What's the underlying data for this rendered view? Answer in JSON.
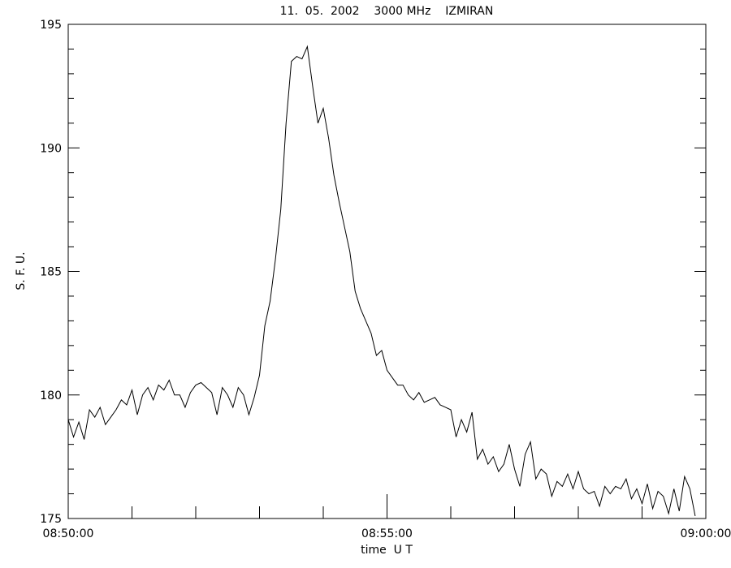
{
  "chart_data": {
    "type": "line",
    "title": "11.  05.  2002    3000 MHz    IZMIRAN",
    "xlabel": "time  U T",
    "ylabel": "S. F. U.",
    "color": "#000000",
    "x": [
      "08:50:00",
      "08:50:05",
      "08:50:10",
      "08:50:15",
      "08:50:20",
      "08:50:25",
      "08:50:30",
      "08:50:35",
      "08:50:40",
      "08:50:45",
      "08:50:50",
      "08:50:55",
      "08:51:00",
      "08:51:05",
      "08:51:10",
      "08:51:15",
      "08:51:20",
      "08:51:25",
      "08:51:30",
      "08:51:35",
      "08:51:40",
      "08:51:45",
      "08:51:50",
      "08:51:55",
      "08:52:00",
      "08:52:05",
      "08:52:10",
      "08:52:15",
      "08:52:20",
      "08:52:25",
      "08:52:30",
      "08:52:35",
      "08:52:40",
      "08:52:45",
      "08:52:50",
      "08:52:55",
      "08:53:00",
      "08:53:05",
      "08:53:10",
      "08:53:15",
      "08:53:20",
      "08:53:25",
      "08:53:30",
      "08:53:35",
      "08:53:40",
      "08:53:45",
      "08:53:50",
      "08:53:55",
      "08:54:00",
      "08:54:05",
      "08:54:10",
      "08:54:15",
      "08:54:20",
      "08:54:25",
      "08:54:30",
      "08:54:35",
      "08:54:40",
      "08:54:45",
      "08:54:50",
      "08:54:55",
      "08:55:00",
      "08:55:05",
      "08:55:10",
      "08:55:15",
      "08:55:20",
      "08:55:25",
      "08:55:30",
      "08:55:35",
      "08:55:40",
      "08:55:45",
      "08:55:50",
      "08:55:55",
      "08:56:00",
      "08:56:05",
      "08:56:10",
      "08:56:15",
      "08:56:20",
      "08:56:25",
      "08:56:30",
      "08:56:35",
      "08:56:40",
      "08:56:45",
      "08:56:50",
      "08:56:55",
      "08:57:00",
      "08:57:05",
      "08:57:10",
      "08:57:15",
      "08:57:20",
      "08:57:25",
      "08:57:30",
      "08:57:35",
      "08:57:40",
      "08:57:45",
      "08:57:50",
      "08:57:55",
      "08:58:00",
      "08:58:05",
      "08:58:10",
      "08:58:15",
      "08:58:20",
      "08:58:25",
      "08:58:30",
      "08:58:35",
      "08:58:40",
      "08:58:45",
      "08:58:50",
      "08:58:55",
      "08:59:00",
      "08:59:05",
      "08:59:10",
      "08:59:15",
      "08:59:20",
      "08:59:25",
      "08:59:30",
      "08:59:35",
      "08:59:40",
      "08:59:45",
      "08:59:50"
    ],
    "values": [
      179.0,
      178.3,
      178.9,
      178.2,
      179.4,
      179.1,
      179.5,
      178.8,
      179.1,
      179.4,
      179.8,
      179.6,
      180.2,
      179.2,
      180.0,
      180.3,
      179.8,
      180.4,
      180.2,
      180.6,
      180.0,
      180.0,
      179.5,
      180.1,
      180.4,
      180.5,
      180.3,
      180.1,
      179.2,
      180.3,
      180.0,
      179.5,
      180.3,
      180.0,
      179.2,
      179.9,
      180.8,
      182.8,
      183.8,
      185.5,
      187.5,
      191.0,
      193.5,
      193.7,
      193.6,
      194.1,
      192.5,
      191.0,
      191.6,
      190.4,
      188.9,
      187.8,
      186.8,
      185.8,
      184.2,
      183.5,
      183.0,
      182.5,
      181.6,
      181.8,
      181.0,
      180.7,
      180.4,
      180.4,
      180.0,
      179.8,
      180.1,
      179.7,
      179.8,
      179.9,
      179.6,
      179.5,
      179.4,
      178.3,
      179.0,
      178.5,
      179.3,
      177.4,
      177.8,
      177.2,
      177.5,
      176.9,
      177.2,
      178.0,
      177.0,
      176.3,
      177.6,
      178.1,
      176.6,
      177.0,
      176.8,
      175.9,
      176.5,
      176.3,
      176.8,
      176.2,
      176.9,
      176.2,
      176.0,
      176.1,
      175.5,
      176.3,
      176.0,
      176.3,
      176.2,
      176.6,
      175.8,
      176.2,
      175.6,
      176.4,
      175.4,
      176.1,
      175.9,
      175.2,
      176.2,
      175.3,
      176.7,
      176.2,
      175.1
    ],
    "xlim": [
      "08:50:00",
      "09:00:00"
    ],
    "xticks": [
      "08:50:00",
      "08:55:00",
      "09:00:00"
    ],
    "ylim": [
      175,
      195
    ],
    "yticks": [
      175,
      180,
      185,
      190,
      195
    ]
  }
}
